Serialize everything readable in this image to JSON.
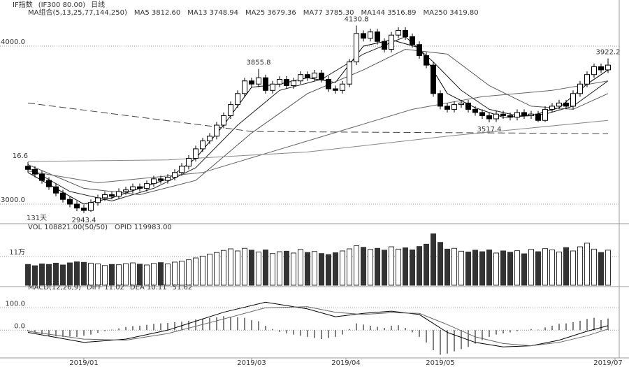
{
  "chart_data": [
    {
      "type": "candlestick",
      "title": "IF指数",
      "subtitle": "(IF300 80.00)",
      "period": "日线",
      "indicator": "MA组合(5,13,25,77,144,250)",
      "period_count": "131天",
      "xlim": [
        -0.5,
        84.5
      ],
      "ylim": [
        2885,
        4270
      ],
      "yticks": [
        {
          "value": 4000,
          "label": "4000.0"
        },
        {
          "value": 3000,
          "label": "3000.0"
        }
      ],
      "grid": true,
      "up_color": "#000000",
      "down_color": "#000000",
      "open": [
        3240,
        3220,
        3190,
        3150,
        3110,
        3070,
        3030,
        3000,
        2975,
        2960,
        3010,
        3040,
        3060,
        3050,
        3080,
        3090,
        3110,
        3100,
        3130,
        3160,
        3150,
        3170,
        3200,
        3240,
        3290,
        3350,
        3400,
        3430,
        3500,
        3560,
        3630,
        3700,
        3780,
        3760,
        3800,
        3720,
        3760,
        3790,
        3750,
        3780,
        3820,
        3800,
        3830,
        3790,
        3730,
        3720,
        3760,
        3900,
        4080,
        4050,
        4090,
        4030,
        3980,
        4070,
        4100,
        4060,
        4010,
        3940,
        3880,
        3700,
        3620,
        3600,
        3630,
        3640,
        3600,
        3580,
        3560,
        3540,
        3570,
        3560,
        3550,
        3580,
        3560,
        3570,
        3530,
        3600,
        3620,
        3640,
        3620,
        3700,
        3760,
        3820,
        3870,
        3850
      ],
      "high": [
        3266.6,
        3240,
        3210,
        3170,
        3130,
        3090,
        3050,
        3020,
        2995,
        3030,
        3060,
        3080,
        3080,
        3100,
        3110,
        3130,
        3130,
        3150,
        3180,
        3180,
        3190,
        3220,
        3260,
        3310,
        3370,
        3420,
        3450,
        3520,
        3580,
        3650,
        3720,
        3800,
        3800,
        3855.8,
        3820,
        3780,
        3810,
        3810,
        3800,
        3840,
        3840,
        3850,
        3850,
        3810,
        3750,
        3780,
        3920,
        4130.8,
        4100,
        4110,
        4110,
        4050,
        4090,
        4120,
        4120,
        4080,
        4030,
        3960,
        3900,
        3720,
        3640,
        3650,
        3660,
        3660,
        3620,
        3600,
        3580,
        3590,
        3590,
        3580,
        3600,
        3600,
        3590,
        3590,
        3620,
        3640,
        3660,
        3660,
        3720,
        3780,
        3840,
        3890,
        3890,
        3922.2
      ],
      "low": [
        3200,
        3170,
        3130,
        3090,
        3050,
        3010,
        2980,
        2955,
        2943.4,
        2950,
        2990,
        3020,
        3030,
        3030,
        3060,
        3070,
        3080,
        3080,
        3110,
        3130,
        3130,
        3150,
        3180,
        3220,
        3270,
        3330,
        3380,
        3410,
        3480,
        3540,
        3610,
        3680,
        3740,
        3740,
        3700,
        3700,
        3740,
        3730,
        3730,
        3760,
        3780,
        3780,
        3770,
        3710,
        3700,
        3700,
        3740,
        3880,
        4030,
        4030,
        4010,
        3960,
        3960,
        4050,
        4040,
        3990,
        3920,
        3860,
        3680,
        3600,
        3580,
        3580,
        3610,
        3580,
        3560,
        3540,
        3517.4,
        3520,
        3540,
        3530,
        3530,
        3540,
        3540,
        3520,
        3520,
        3580,
        3600,
        3600,
        3600,
        3680,
        3740,
        3800,
        3830,
        3830
      ],
      "close": [
        3220,
        3190,
        3150,
        3110,
        3070,
        3030,
        3000,
        2975,
        2960,
        3010,
        3040,
        3060,
        3050,
        3080,
        3090,
        3110,
        3100,
        3130,
        3160,
        3150,
        3170,
        3200,
        3240,
        3290,
        3350,
        3400,
        3430,
        3500,
        3560,
        3630,
        3700,
        3780,
        3760,
        3800,
        3720,
        3760,
        3790,
        3750,
        3780,
        3820,
        3800,
        3830,
        3790,
        3730,
        3720,
        3760,
        3900,
        4080,
        4050,
        4090,
        4030,
        3980,
        4070,
        4100,
        4060,
        4010,
        3940,
        3880,
        3700,
        3620,
        3600,
        3630,
        3640,
        3600,
        3580,
        3560,
        3540,
        3570,
        3560,
        3550,
        3580,
        3560,
        3570,
        3530,
        3600,
        3620,
        3640,
        3620,
        3700,
        3760,
        3820,
        3870,
        3850,
        3880
      ],
      "series": [
        {
          "name": "MA5 3812.60",
          "color": "#000000",
          "x": [
            0,
            4,
            8,
            12,
            16,
            20,
            24,
            28,
            32,
            36,
            40,
            44,
            48,
            52,
            56,
            60,
            64,
            68,
            72,
            76,
            80,
            83
          ],
          "values": [
            3200,
            3100,
            3000,
            3040,
            3100,
            3160,
            3290,
            3500,
            3740,
            3760,
            3800,
            3770,
            4000,
            4040,
            3990,
            3700,
            3610,
            3550,
            3560,
            3610,
            3760,
            3850
          ]
        },
        {
          "name": "MA13 3748.94",
          "color": "#222222",
          "x": [
            0,
            6,
            12,
            18,
            24,
            30,
            36,
            42,
            48,
            54,
            58,
            62,
            66,
            70,
            74,
            78,
            83
          ],
          "values": [
            3230,
            3080,
            3020,
            3100,
            3230,
            3500,
            3720,
            3790,
            3950,
            4060,
            3900,
            3720,
            3600,
            3560,
            3570,
            3620,
            3780
          ]
        },
        {
          "name": "MA25 3679.36",
          "color": "#555555",
          "x": [
            0,
            8,
            16,
            24,
            32,
            40,
            48,
            54,
            60,
            66,
            72,
            78,
            83
          ],
          "values": [
            3250,
            3100,
            3060,
            3150,
            3450,
            3700,
            3850,
            3980,
            3950,
            3750,
            3620,
            3600,
            3700
          ]
        },
        {
          "name": "MA77 3785.30",
          "color": "#666666",
          "x": [
            0,
            10,
            25,
            40,
            55,
            65,
            75,
            83
          ],
          "values": [
            3210,
            3135,
            3200,
            3400,
            3600,
            3680,
            3720,
            3780
          ]
        },
        {
          "name": "MA144 3516.89",
          "color": "#888888",
          "x": [
            0,
            20,
            40,
            60,
            83
          ],
          "values": [
            3270,
            3280,
            3330,
            3430,
            3530
          ]
        },
        {
          "name": "MA250 3419.80",
          "color": "#444444",
          "style": "dashed",
          "x": [
            0,
            25,
            32,
            50,
            70,
            83
          ],
          "values": [
            3640,
            3500,
            3460,
            3455,
            3450,
            3445
          ]
        }
      ],
      "annotations": [
        {
          "text": "16.6",
          "x": 0,
          "y": 3266.6
        },
        {
          "text": "2943.4",
          "x": 8,
          "y": 2943.4
        },
        {
          "text": "3855.8",
          "x": 33,
          "y": 3855.8
        },
        {
          "text": "4130.8",
          "x": 47,
          "y": 4130.8
        },
        {
          "text": "3517.4",
          "x": 66,
          "y": 3517.4
        },
        {
          "text": "3922.2",
          "x": 83,
          "y": 3922.2
        }
      ]
    },
    {
      "type": "bar",
      "title": "VOL 108821.00(50/50)",
      "subtitle": "OPID 119983.00",
      "xlim": [
        -0.5,
        84.5
      ],
      "ylim": [
        0,
        21
      ],
      "yticks": [
        {
          "value": 11,
          "label": "11万"
        }
      ],
      "grid": true,
      "color": "#333333",
      "values": [
        8,
        7.5,
        8.2,
        8,
        8.5,
        7.8,
        8.6,
        9,
        8.8,
        8.5,
        8.2,
        7.6,
        8,
        7.9,
        8.3,
        8.6,
        8.1,
        7.8,
        8.4,
        8.7,
        8.2,
        8.9,
        9.3,
        9.8,
        10.5,
        11.2,
        12,
        12.6,
        13.4,
        14,
        13.2,
        14.2,
        13.5,
        12.8,
        13.6,
        12.2,
        12.9,
        13.1,
        12.4,
        13.8,
        12.6,
        13,
        12.2,
        11.8,
        12.5,
        13.2,
        14,
        15.2,
        14.6,
        13.8,
        14.2,
        13.5,
        14.8,
        13.9,
        14.4,
        13.6,
        14.9,
        15.8,
        19.8,
        16.5,
        13.9,
        14.2,
        13.1,
        12.8,
        13.5,
        12.9,
        13.6,
        12.4,
        13.2,
        12.7,
        13.3,
        12.1,
        13.8,
        12.9,
        14.1,
        13.6,
        12.8,
        14.5,
        13.2,
        14.8,
        16.2,
        13.9,
        12.6,
        13.5
      ]
    },
    {
      "type": "macd",
      "title": "MACD(12,26,9)",
      "histogram_label": "51.62",
      "xlim": [
        -0.5,
        84.5
      ],
      "ylim": [
        -118,
        179
      ],
      "yticks": [
        {
          "value": 100,
          "label": "100.0"
        },
        {
          "value": 0,
          "label": "0.0"
        }
      ],
      "grid": true,
      "xticks": [
        {
          "value": 8,
          "label": "2019/01"
        },
        {
          "value": 32,
          "label": "2019/03"
        },
        {
          "value": 45.5,
          "label": "2019/04"
        },
        {
          "value": 59,
          "label": "2019/05"
        },
        {
          "value": 84,
          "label": "2019/07"
        }
      ],
      "color": "#000000",
      "values": [
        -5,
        -10,
        -18,
        -25,
        -28,
        -30,
        -28,
        -30,
        -25,
        -20,
        -12,
        -5,
        2,
        8,
        14,
        18,
        20,
        24,
        28,
        30,
        32,
        35,
        38,
        42,
        48,
        52,
        55,
        58,
        62,
        60,
        58,
        55,
        45,
        40,
        20,
        5,
        -8,
        -15,
        -20,
        -25,
        -30,
        -35,
        -40,
        -35,
        -30,
        -20,
        5,
        30,
        25,
        20,
        15,
        10,
        20,
        22,
        10,
        -10,
        -30,
        -55,
        -90,
        -110,
        -105,
        -95,
        -85,
        -75,
        -60,
        -45,
        -30,
        -20,
        -15,
        -10,
        -5,
        0,
        5,
        2,
        12,
        20,
        28,
        30,
        35,
        42,
        50,
        55,
        45,
        52
      ],
      "series": [
        {
          "name": "DIFF 11.02",
          "color": "#000000",
          "x": [
            0,
            8,
            14,
            20,
            28,
            34,
            40,
            44,
            48,
            52,
            56,
            60,
            64,
            68,
            72,
            76,
            80,
            83
          ],
          "values": [
            -10,
            -55,
            -40,
            0,
            80,
            125,
            95,
            60,
            75,
            85,
            70,
            -10,
            -55,
            -75,
            -70,
            -45,
            -5,
            20
          ]
        },
        {
          "name": "DEA 10.11",
          "color": "#666666",
          "x": [
            0,
            8,
            14,
            20,
            28,
            34,
            40,
            44,
            48,
            52,
            56,
            60,
            64,
            68,
            72,
            76,
            80,
            83
          ],
          "values": [
            -5,
            -40,
            -45,
            -15,
            50,
            100,
            105,
            80,
            70,
            78,
            75,
            25,
            -30,
            -60,
            -70,
            -55,
            -25,
            5
          ]
        }
      ]
    }
  ]
}
